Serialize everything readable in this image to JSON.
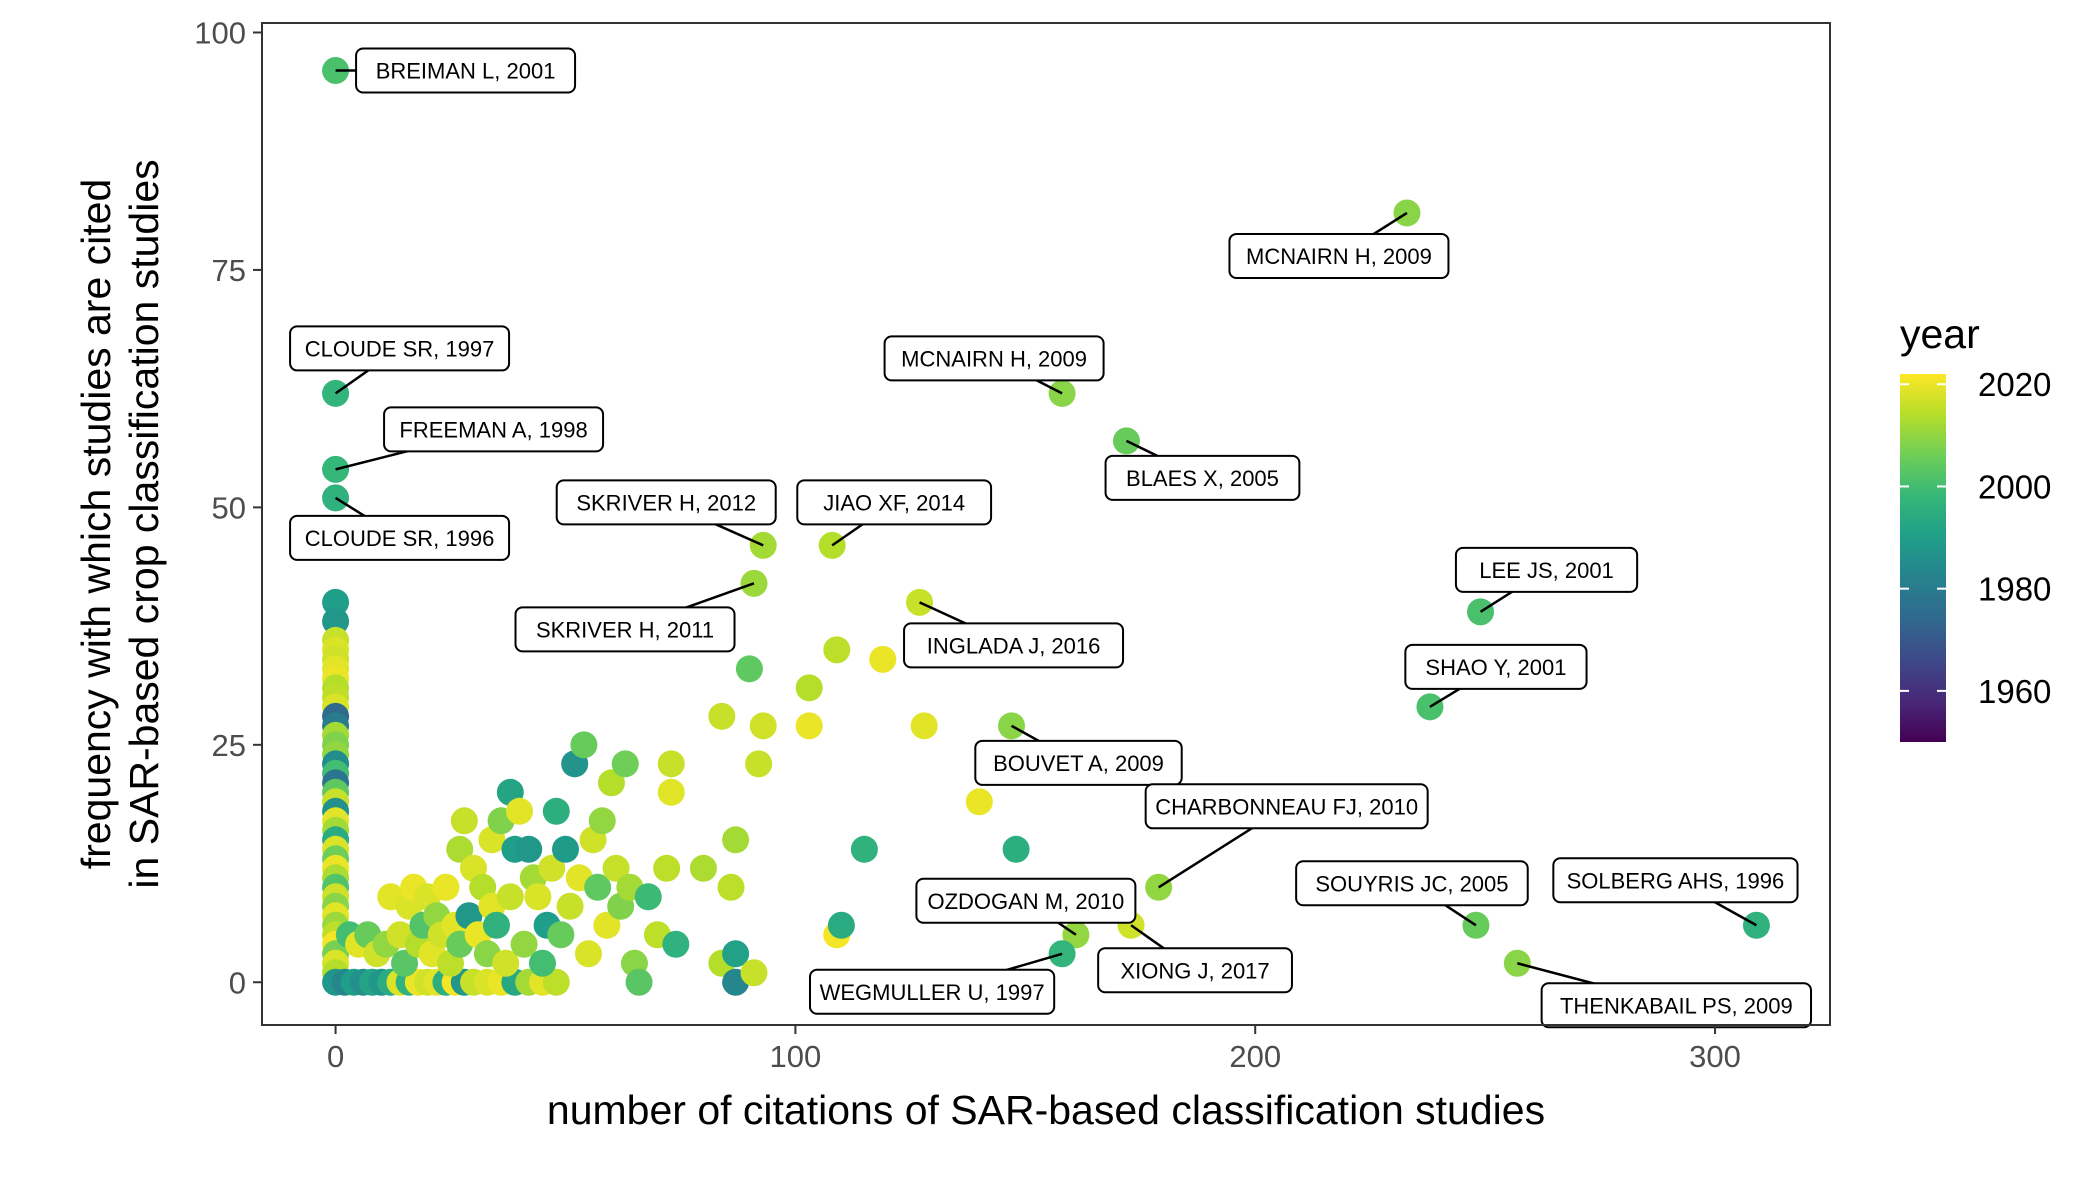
{
  "chart_data": {
    "type": "scatter",
    "xlabel": "number of citations of SAR-based classification studies",
    "ylabel_lines": [
      "frequency with which studies are cited",
      "in SAR-based crop classification studies"
    ],
    "xlim": [
      -16,
      325
    ],
    "ylim": [
      -4.5,
      101
    ],
    "x_ticks": [
      0,
      100,
      200,
      300
    ],
    "y_ticks": [
      0,
      25,
      50,
      75,
      100
    ],
    "grid": false,
    "legend": {
      "title": "year",
      "placement": "right",
      "type": "colorbar",
      "range": [
        1950,
        2022
      ],
      "ticks": [
        1960,
        1980,
        2000,
        2020
      ],
      "colormap": "viridis"
    },
    "colormap_stops": [
      "#440154",
      "#482878",
      "#3e4989",
      "#31688e",
      "#26828e",
      "#1f9e89",
      "#35b779",
      "#6ece58",
      "#b5de2b",
      "#fde725"
    ],
    "points": [
      {
        "x": 0,
        "y": 96,
        "year": 2001
      },
      {
        "x": 0,
        "y": 62,
        "year": 1997
      },
      {
        "x": 0,
        "y": 54,
        "year": 1998
      },
      {
        "x": 0,
        "y": 51,
        "year": 1996
      },
      {
        "x": 0,
        "y": 40,
        "year": 1990
      },
      {
        "x": 0,
        "y": 38,
        "year": 1988
      },
      {
        "x": 0,
        "y": 36,
        "year": 2016
      },
      {
        "x": 0,
        "y": 35,
        "year": 2018
      },
      {
        "x": 0,
        "y": 34,
        "year": 2017
      },
      {
        "x": 0,
        "y": 33,
        "year": 2019
      },
      {
        "x": 0,
        "y": 32,
        "year": 2020
      },
      {
        "x": 0,
        "y": 31,
        "year": 2014
      },
      {
        "x": 0,
        "y": 30,
        "year": 2015
      },
      {
        "x": 0,
        "y": 29,
        "year": 2018
      },
      {
        "x": 0,
        "y": 28,
        "year": 1975
      },
      {
        "x": 0,
        "y": 27,
        "year": 1980
      },
      {
        "x": 0,
        "y": 26,
        "year": 2012
      },
      {
        "x": 0,
        "y": 25,
        "year": 2008
      },
      {
        "x": 0,
        "y": 24,
        "year": 2010
      },
      {
        "x": 0,
        "y": 23,
        "year": 1985
      },
      {
        "x": 0,
        "y": 22,
        "year": 2000
      },
      {
        "x": 0,
        "y": 21,
        "year": 1978
      },
      {
        "x": 0,
        "y": 20,
        "year": 2004
      },
      {
        "x": 0,
        "y": 19,
        "year": 2016
      },
      {
        "x": 0,
        "y": 18,
        "year": 1986
      },
      {
        "x": 0,
        "y": 17,
        "year": 2019
      },
      {
        "x": 0,
        "y": 16,
        "year": 2012
      },
      {
        "x": 0,
        "y": 15,
        "year": 1994
      },
      {
        "x": 0,
        "y": 14,
        "year": 2018
      },
      {
        "x": 0,
        "y": 13,
        "year": 2006
      },
      {
        "x": 0,
        "y": 12,
        "year": 2020
      },
      {
        "x": 0,
        "y": 11,
        "year": 2013
      },
      {
        "x": 0,
        "y": 10,
        "year": 2002
      },
      {
        "x": 0,
        "y": 9,
        "year": 2017
      },
      {
        "x": 0,
        "y": 8,
        "year": 2009
      },
      {
        "x": 0,
        "y": 7,
        "year": 2019
      },
      {
        "x": 0,
        "y": 6,
        "year": 2011
      },
      {
        "x": 0,
        "y": 5,
        "year": 2015
      },
      {
        "x": 0,
        "y": 4,
        "year": 2021
      },
      {
        "x": 0,
        "y": 3,
        "year": 2007
      },
      {
        "x": 0,
        "y": 2,
        "year": 2018
      },
      {
        "x": 0,
        "y": 1,
        "year": 2014
      },
      {
        "x": 0,
        "y": 0,
        "year": 1988
      },
      {
        "x": 2,
        "y": 0,
        "year": 1983
      },
      {
        "x": 4,
        "y": 0,
        "year": 1990
      },
      {
        "x": 6,
        "y": 0,
        "year": 1986
      },
      {
        "x": 8,
        "y": 0,
        "year": 1992
      },
      {
        "x": 10,
        "y": 0,
        "year": 1988
      },
      {
        "x": 12,
        "y": 0,
        "year": 1994
      },
      {
        "x": 14,
        "y": 0,
        "year": 2018
      },
      {
        "x": 16,
        "y": 0,
        "year": 1996
      },
      {
        "x": 18,
        "y": 0,
        "year": 2020
      },
      {
        "x": 20,
        "y": 0,
        "year": 2017
      },
      {
        "x": 22,
        "y": 0,
        "year": 2019
      },
      {
        "x": 24,
        "y": 0,
        "year": 1995
      },
      {
        "x": 26,
        "y": 0,
        "year": 2021
      },
      {
        "x": 28,
        "y": 0,
        "year": 1988
      },
      {
        "x": 30,
        "y": 0,
        "year": 2016
      },
      {
        "x": 33,
        "y": 0,
        "year": 2018
      },
      {
        "x": 36,
        "y": 0,
        "year": 2020
      },
      {
        "x": 39,
        "y": 0,
        "year": 1993
      },
      {
        "x": 42,
        "y": 0,
        "year": 2012
      },
      {
        "x": 45,
        "y": 0,
        "year": 2019
      },
      {
        "x": 48,
        "y": 0,
        "year": 2015
      },
      {
        "x": 3,
        "y": 5,
        "year": 2000
      },
      {
        "x": 5,
        "y": 4,
        "year": 2019
      },
      {
        "x": 7,
        "y": 5,
        "year": 2005
      },
      {
        "x": 9,
        "y": 3,
        "year": 2017
      },
      {
        "x": 11,
        "y": 4,
        "year": 2010
      },
      {
        "x": 12,
        "y": 9,
        "year": 2019
      },
      {
        "x": 14,
        "y": 5,
        "year": 2017
      },
      {
        "x": 15,
        "y": 2,
        "year": 2003
      },
      {
        "x": 16,
        "y": 8,
        "year": 2018
      },
      {
        "x": 17,
        "y": 10,
        "year": 2020
      },
      {
        "x": 18,
        "y": 4,
        "year": 2014
      },
      {
        "x": 19,
        "y": 6,
        "year": 2002
      },
      {
        "x": 20,
        "y": 9,
        "year": 2018
      },
      {
        "x": 21,
        "y": 3,
        "year": 2019
      },
      {
        "x": 22,
        "y": 7,
        "year": 2010
      },
      {
        "x": 23,
        "y": 5,
        "year": 2017
      },
      {
        "x": 24,
        "y": 10,
        "year": 2020
      },
      {
        "x": 25,
        "y": 2,
        "year": 2015
      },
      {
        "x": 26,
        "y": 6,
        "year": 2019
      },
      {
        "x": 27,
        "y": 14,
        "year": 2013
      },
      {
        "x": 27,
        "y": 4,
        "year": 2005
      },
      {
        "x": 28,
        "y": 17,
        "year": 2016
      },
      {
        "x": 29,
        "y": 7,
        "year": 1988
      },
      {
        "x": 30,
        "y": 12,
        "year": 2018
      },
      {
        "x": 31,
        "y": 5,
        "year": 2020
      },
      {
        "x": 32,
        "y": 10,
        "year": 2014
      },
      {
        "x": 33,
        "y": 3,
        "year": 2009
      },
      {
        "x": 34,
        "y": 15,
        "year": 2018
      },
      {
        "x": 34,
        "y": 8,
        "year": 2019
      },
      {
        "x": 35,
        "y": 6,
        "year": 1996
      },
      {
        "x": 36,
        "y": 17,
        "year": 2008
      },
      {
        "x": 37,
        "y": 2,
        "year": 2017
      },
      {
        "x": 38,
        "y": 9,
        "year": 2016
      },
      {
        "x": 38,
        "y": 20,
        "year": 1992
      },
      {
        "x": 39,
        "y": 14,
        "year": 1990
      },
      {
        "x": 40,
        "y": 18,
        "year": 2019
      },
      {
        "x": 41,
        "y": 4,
        "year": 2010
      },
      {
        "x": 42,
        "y": 14,
        "year": 1988
      },
      {
        "x": 43,
        "y": 11,
        "year": 2012
      },
      {
        "x": 44,
        "y": 9,
        "year": 2018
      },
      {
        "x": 45,
        "y": 2,
        "year": 2000
      },
      {
        "x": 46,
        "y": 6,
        "year": 1990
      },
      {
        "x": 47,
        "y": 12,
        "year": 2017
      },
      {
        "x": 48,
        "y": 18,
        "year": 1995
      },
      {
        "x": 49,
        "y": 5,
        "year": 2005
      },
      {
        "x": 50,
        "y": 14,
        "year": 1989
      },
      {
        "x": 51,
        "y": 8,
        "year": 2016
      },
      {
        "x": 52,
        "y": 23,
        "year": 1987
      },
      {
        "x": 53,
        "y": 11,
        "year": 2019
      },
      {
        "x": 54,
        "y": 25,
        "year": 2005
      },
      {
        "x": 55,
        "y": 3,
        "year": 2018
      },
      {
        "x": 56,
        "y": 15,
        "year": 2017
      },
      {
        "x": 57,
        "y": 10,
        "year": 2004
      },
      {
        "x": 58,
        "y": 17,
        "year": 2010
      },
      {
        "x": 59,
        "y": 6,
        "year": 2019
      },
      {
        "x": 60,
        "y": 21,
        "year": 2014
      },
      {
        "x": 61,
        "y": 12,
        "year": 2016
      },
      {
        "x": 62,
        "y": 8,
        "year": 2008
      },
      {
        "x": 63,
        "y": 23,
        "year": 2006
      },
      {
        "x": 64,
        "y": 10,
        "year": 2012
      },
      {
        "x": 65,
        "y": 2,
        "year": 2009
      },
      {
        "x": 68,
        "y": 9,
        "year": 1999
      },
      {
        "x": 70,
        "y": 5,
        "year": 2015
      },
      {
        "x": 72,
        "y": 12,
        "year": 2015
      },
      {
        "x": 73,
        "y": 20,
        "year": 2019
      },
      {
        "x": 73,
        "y": 23,
        "year": 2016
      },
      {
        "x": 74,
        "y": 4,
        "year": 1996
      },
      {
        "x": 66,
        "y": 0,
        "year": 2003
      },
      {
        "x": 80,
        "y": 12,
        "year": 2013
      },
      {
        "x": 84,
        "y": 28,
        "year": 2016
      },
      {
        "x": 84,
        "y": 2,
        "year": 2014
      },
      {
        "x": 86,
        "y": 10,
        "year": 2015
      },
      {
        "x": 87,
        "y": 15,
        "year": 2012
      },
      {
        "x": 87,
        "y": 3,
        "year": 1991
      },
      {
        "x": 87,
        "y": 0,
        "year": 1983
      },
      {
        "x": 90,
        "y": 33,
        "year": 2004
      },
      {
        "x": 91,
        "y": 1,
        "year": 2016
      },
      {
        "x": 92,
        "y": 23,
        "year": 2016
      },
      {
        "x": 93,
        "y": 27,
        "year": 2017
      },
      {
        "x": 103,
        "y": 31,
        "year": 2014
      },
      {
        "x": 103,
        "y": 27,
        "year": 2020
      },
      {
        "x": 109,
        "y": 35,
        "year": 2015
      },
      {
        "x": 109,
        "y": 5,
        "year": 2021
      },
      {
        "x": 110,
        "y": 6,
        "year": 1994
      },
      {
        "x": 115,
        "y": 14,
        "year": 1996
      },
      {
        "x": 119,
        "y": 34,
        "year": 2020
      },
      {
        "x": 128,
        "y": 27,
        "year": 2019
      },
      {
        "x": 140,
        "y": 19,
        "year": 2020
      },
      {
        "x": 148,
        "y": 14,
        "year": 1995
      },
      {
        "x": 91,
        "y": 42,
        "year": 2011
      },
      {
        "x": 93,
        "y": 46,
        "year": 2012
      },
      {
        "x": 108,
        "y": 46,
        "year": 2014
      },
      {
        "x": 127,
        "y": 40,
        "year": 2016
      },
      {
        "x": 147,
        "y": 27,
        "year": 2009
      },
      {
        "x": 158,
        "y": 62,
        "year": 2009
      },
      {
        "x": 172,
        "y": 57,
        "year": 2005
      },
      {
        "x": 233,
        "y": 81,
        "year": 2009
      },
      {
        "x": 249,
        "y": 39,
        "year": 2001
      },
      {
        "x": 238,
        "y": 29,
        "year": 2001
      },
      {
        "x": 179,
        "y": 10,
        "year": 2010
      },
      {
        "x": 161,
        "y": 5,
        "year": 2010
      },
      {
        "x": 158,
        "y": 3,
        "year": 1997
      },
      {
        "x": 173,
        "y": 6,
        "year": 2017
      },
      {
        "x": 248,
        "y": 6,
        "year": 2005
      },
      {
        "x": 257,
        "y": 2,
        "year": 2009
      },
      {
        "x": 309,
        "y": 6,
        "year": 1996
      }
    ],
    "annotations": [
      {
        "text": "BREIMAN L, 2001",
        "x": 0,
        "y": 96
      },
      {
        "text": "CLOUDE SR, 1997",
        "x": 0,
        "y": 62
      },
      {
        "text": "FREEMAN A, 1998",
        "x": 0,
        "y": 54
      },
      {
        "text": "CLOUDE SR, 1996",
        "x": 0,
        "y": 51
      },
      {
        "text": "MCNAIRN H, 2009",
        "x": 233,
        "y": 81
      },
      {
        "text": "MCNAIRN H, 2009",
        "x": 158,
        "y": 62
      },
      {
        "text": "BLAES X, 2005",
        "x": 172,
        "y": 57
      },
      {
        "text": "SKRIVER H, 2012",
        "x": 93,
        "y": 46
      },
      {
        "text": "JIAO XF, 2014",
        "x": 108,
        "y": 46
      },
      {
        "text": "SKRIVER H, 2011",
        "x": 91,
        "y": 42
      },
      {
        "text": "INGLADA J, 2016",
        "x": 127,
        "y": 40
      },
      {
        "text": "LEE JS, 2001",
        "x": 249,
        "y": 39
      },
      {
        "text": "SHAO Y, 2001",
        "x": 238,
        "y": 29
      },
      {
        "text": "BOUVET A, 2009",
        "x": 147,
        "y": 27
      },
      {
        "text": "CHARBONNEAU FJ, 2010",
        "x": 179,
        "y": 10
      },
      {
        "text": "OZDOGAN M, 2010",
        "x": 161,
        "y": 5
      },
      {
        "text": "SOUYRIS JC, 2005",
        "x": 248,
        "y": 6
      },
      {
        "text": "SOLBERG AHS, 1996",
        "x": 309,
        "y": 6
      },
      {
        "text": "XIONG J, 2017",
        "x": 173,
        "y": 6
      },
      {
        "text": "WEGMULLER U, 1997",
        "x": 158,
        "y": 3
      },
      {
        "text": "THENKABAIL PS, 2009",
        "x": 257,
        "y": 2
      }
    ]
  }
}
